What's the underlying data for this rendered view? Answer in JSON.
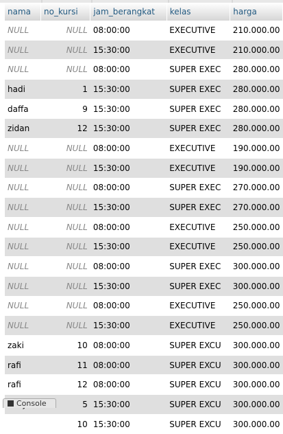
{
  "columns": [
    {
      "key": "nama",
      "label": "nama"
    },
    {
      "key": "no_kursi",
      "label": "no_kursi"
    },
    {
      "key": "jam_berangkat",
      "label": "jam_berangkat"
    },
    {
      "key": "kelas",
      "label": "kelas"
    },
    {
      "key": "harga",
      "label": "harga"
    }
  ],
  "null_text": "NULL",
  "rows": [
    [
      "NULL",
      "NULL",
      "08:00:00",
      "EXECUTIVE",
      "210.000.00"
    ],
    [
      "NULL",
      "NULL",
      "15:30:00",
      "EXECUTIVE",
      "210.000.00"
    ],
    [
      "NULL",
      "NULL",
      "08:00:00",
      "SUPER EXEC",
      "280.000.00"
    ],
    [
      "hadi",
      "1",
      "15:30:00",
      "SUPER EXEC",
      "280.000.00"
    ],
    [
      "daffa",
      "9",
      "15:30:00",
      "SUPER EXEC",
      "280.000.00"
    ],
    [
      "zidan",
      "12",
      "15:30:00",
      "SUPER EXEC",
      "280.000.00"
    ],
    [
      "NULL",
      "NULL",
      "08:00:00",
      "EXECUTIVE",
      "190.000.00"
    ],
    [
      "NULL",
      "NULL",
      "15:30:00",
      "EXECUTIVE",
      "190.000.00"
    ],
    [
      "NULL",
      "NULL",
      "08:00:00",
      "SUPER EXEC",
      "270.000.00"
    ],
    [
      "NULL",
      "NULL",
      "15:30:00",
      "SUPER EXEC",
      "270.000.00"
    ],
    [
      "NULL",
      "NULL",
      "08:00:00",
      "EXECUTIVE",
      "250.000.00"
    ],
    [
      "NULL",
      "NULL",
      "15:30:00",
      "EXECUTIVE",
      "250.000.00"
    ],
    [
      "NULL",
      "NULL",
      "08:00:00",
      "SUPER EXEC",
      "300.000.00"
    ],
    [
      "NULL",
      "NULL",
      "15:30:00",
      "SUPER EXEC",
      "300.000.00"
    ],
    [
      "NULL",
      "NULL",
      "08:00:00",
      "EXECUTIVE",
      "250.000.00"
    ],
    [
      "NULL",
      "NULL",
      "15:30:00",
      "EXECUTIVE",
      "250.000.00"
    ],
    [
      "zaki",
      "10",
      "08:00:00",
      "SUPER EXCU",
      "300.000.00"
    ],
    [
      "rafi",
      "11",
      "08:00:00",
      "SUPER EXCU",
      "300.000.00"
    ],
    [
      "rafi",
      "12",
      "08:00:00",
      "SUPER EXCU",
      "300.000.00"
    ],
    [
      "ricky",
      "5",
      "15:30:00",
      "SUPER EXCU",
      "300.000.00"
    ],
    [
      "",
      "10",
      "15:30:00",
      "SUPER EXCU",
      "300.000.00"
    ]
  ],
  "console": {
    "label": "Console",
    "icon": "console-icon"
  },
  "colors": {
    "header_text": "#235a81",
    "null_text": "#888888",
    "even_row": "#dfdfdf"
  }
}
